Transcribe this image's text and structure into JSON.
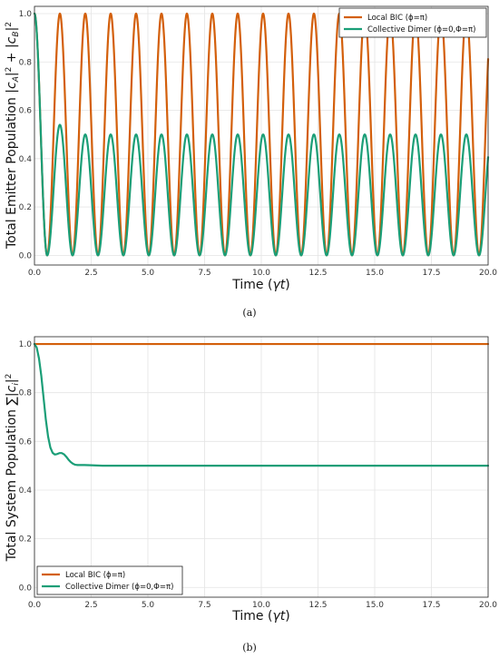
{
  "colors": {
    "local": "#d35f0b",
    "collective": "#1a9e77",
    "grid": "#e4e4e4",
    "frame": "#222222"
  },
  "chart_data": [
    {
      "type": "line",
      "caption": "(a)",
      "xlabel": "Time (γt)",
      "ylabel": "Total Emitter Population |c_A|² + |c_B|²",
      "xlim": [
        0,
        20
      ],
      "ylim": [
        -0.04,
        1.03
      ],
      "xticks": [
        "0.0",
        "2.5",
        "5.0",
        "7.5",
        "10.0",
        "12.5",
        "15.0",
        "17.5",
        "20.0"
      ],
      "yticks": [
        "0.0",
        "0.2",
        "0.4",
        "0.6",
        "0.8",
        "1.0"
      ],
      "grid": true,
      "legend_position": "top-right",
      "series": [
        {
          "name": "Local BIC (ϕ=π)",
          "color_key": "local",
          "description_values": "oscillates between 0 and 1 with period ~1.12 γt",
          "x": [
            0.0,
            0.28,
            0.56,
            0.84,
            1.12,
            1.4,
            1.68,
            1.96,
            2.24,
            2.52,
            2.8,
            3.08,
            3.36
          ],
          "y": [
            1.0,
            0.5,
            0.0,
            0.5,
            1.0,
            0.5,
            0.0,
            0.5,
            1.0,
            0.5,
            0.0,
            0.5,
            1.0
          ],
          "period": 1.12,
          "y_max": 1.0,
          "y_min": 0.0
        },
        {
          "name": "Collective Dimer (ϕ=0,Φ=π)",
          "color_key": "collective",
          "x": [
            0.0,
            0.28,
            0.56,
            0.84,
            1.12,
            1.4,
            1.68,
            1.96,
            2.24,
            2.52
          ],
          "y": [
            1.0,
            0.5,
            0.0,
            0.27,
            0.54,
            0.27,
            0.0,
            0.25,
            0.5,
            0.25
          ],
          "period": 1.12,
          "y_max_first": 0.54,
          "y_max": 0.5,
          "y_min": 0.0
        }
      ]
    },
    {
      "type": "line",
      "caption": "(b)",
      "xlabel": "Time (γt)",
      "ylabel": "Total System Population ∑|c_i|²",
      "xlim": [
        0,
        20
      ],
      "ylim": [
        -0.04,
        1.03
      ],
      "xticks": [
        "0.0",
        "2.5",
        "5.0",
        "7.5",
        "10.0",
        "12.5",
        "15.0",
        "17.5",
        "20.0"
      ],
      "yticks": [
        "0.0",
        "0.2",
        "0.4",
        "0.6",
        "0.8",
        "1.0"
      ],
      "grid": true,
      "legend_position": "bottom-left",
      "series": [
        {
          "name": "Local BIC (ϕ=π)",
          "color_key": "local",
          "x": [
            0,
            20
          ],
          "y": [
            1.0,
            1.0
          ]
        },
        {
          "name": "Collective Dimer (ϕ=0,Φ=π)",
          "color_key": "collective",
          "x": [
            0.0,
            0.1,
            0.2,
            0.3,
            0.4,
            0.5,
            0.6,
            0.7,
            0.8,
            0.9,
            1.0,
            1.1,
            1.2,
            1.3,
            1.4,
            1.5,
            1.6,
            1.7,
            1.8,
            1.9,
            2.0,
            2.2,
            2.5,
            3.0,
            3.5,
            4.0,
            5.0,
            10.0,
            15.0,
            20.0
          ],
          "y": [
            1.0,
            0.985,
            0.94,
            0.87,
            0.78,
            0.69,
            0.62,
            0.575,
            0.553,
            0.546,
            0.548,
            0.552,
            0.552,
            0.547,
            0.537,
            0.525,
            0.515,
            0.508,
            0.504,
            0.503,
            0.503,
            0.503,
            0.502,
            0.5,
            0.5,
            0.5,
            0.5,
            0.5,
            0.5,
            0.5
          ]
        }
      ]
    }
  ]
}
